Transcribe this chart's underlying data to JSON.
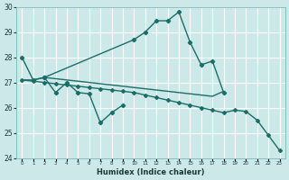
{
  "xlabel": "Humidex (Indice chaleur)",
  "x": [
    0,
    1,
    2,
    3,
    4,
    5,
    6,
    7,
    8,
    9,
    10,
    11,
    12,
    13,
    14,
    15,
    16,
    17,
    18,
    19,
    20,
    21,
    22,
    23
  ],
  "line_top": [
    28.0,
    27.1,
    27.2,
    null,
    null,
    null,
    null,
    null,
    null,
    null,
    28.7,
    29.0,
    29.45,
    29.45,
    29.8,
    28.6,
    27.7,
    27.85,
    26.6,
    null,
    null,
    null,
    null,
    null
  ],
  "line_jagged": [
    null,
    null,
    27.2,
    26.6,
    27.0,
    26.6,
    26.55,
    25.4,
    25.8,
    26.1,
    null,
    null,
    null,
    null,
    null,
    null,
    null,
    null,
    null,
    null,
    null,
    null,
    null,
    null
  ],
  "line_flat": [
    27.1,
    27.1,
    27.2,
    27.15,
    27.1,
    27.05,
    27.0,
    26.95,
    26.9,
    26.85,
    26.8,
    26.75,
    26.7,
    26.65,
    26.6,
    26.55,
    26.5,
    26.45,
    26.65,
    null,
    null,
    null,
    null,
    null
  ],
  "line_decline": [
    27.1,
    27.05,
    27.0,
    26.95,
    26.9,
    26.85,
    26.8,
    26.75,
    26.7,
    26.65,
    26.6,
    26.5,
    26.4,
    26.3,
    26.2,
    26.1,
    26.0,
    25.9,
    25.8,
    25.9,
    25.85,
    25.5,
    24.9,
    24.3
  ],
  "ylim": [
    24,
    30
  ],
  "yticks": [
    24,
    25,
    26,
    27,
    28,
    29,
    30
  ],
  "bg_color": "#cce8e8",
  "grid_color": "#ffffff",
  "line_color": "#1a6e68"
}
